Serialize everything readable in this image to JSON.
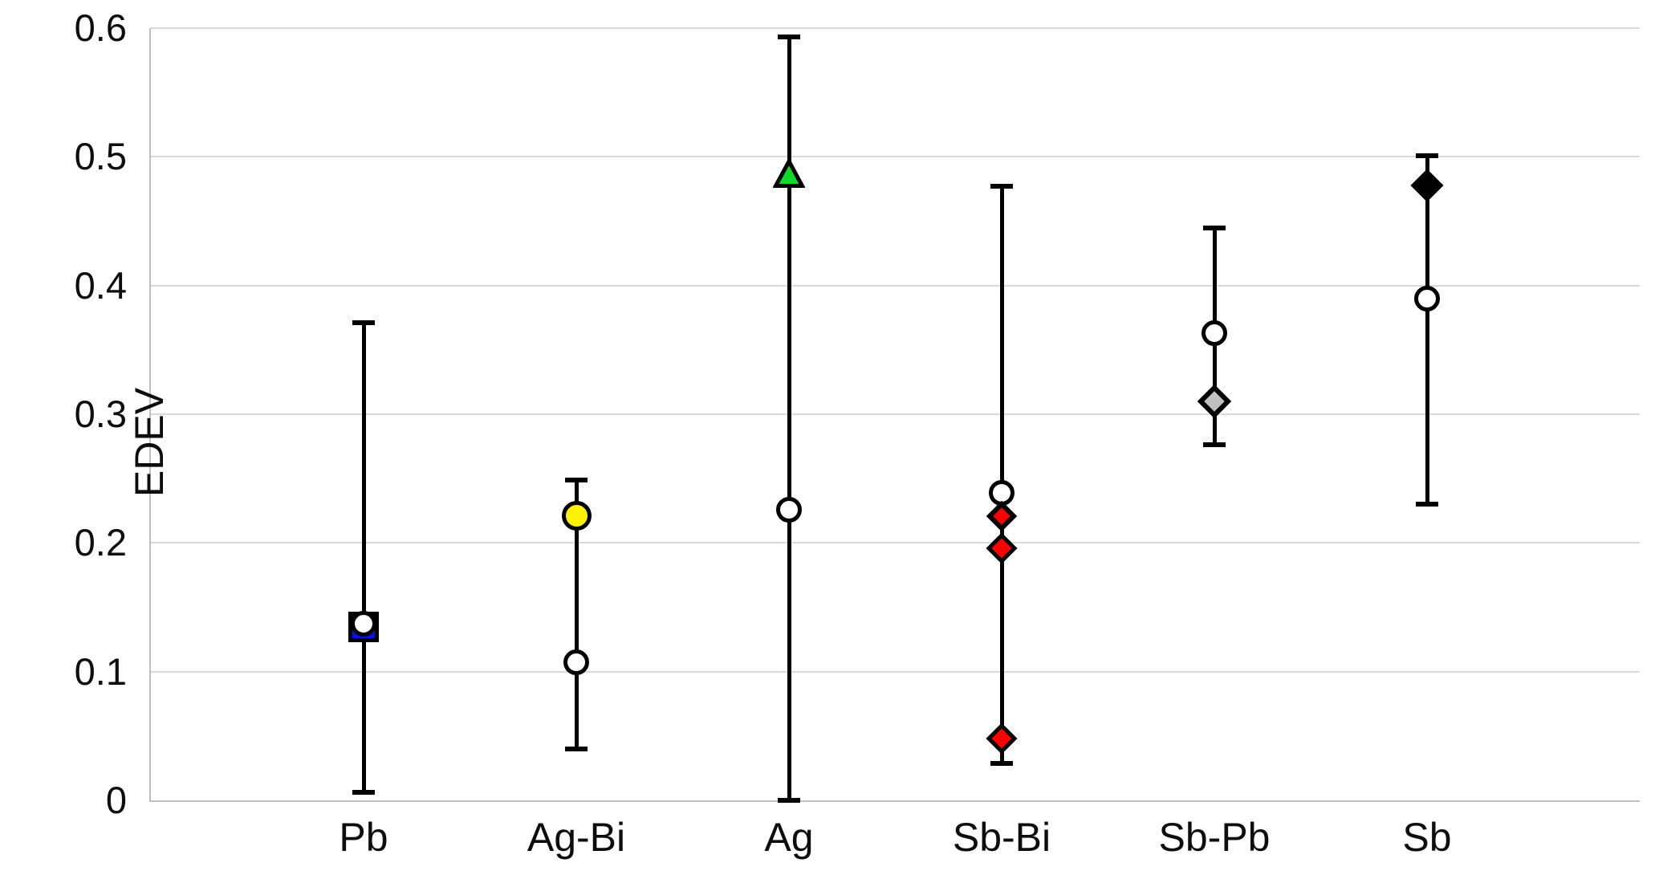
{
  "chart_data": {
    "type": "scatter",
    "subtype": "point-with-error-bars",
    "title": "",
    "xlabel": "",
    "ylabel": "EDEV",
    "ylim": [
      0,
      0.6
    ],
    "yticks": [
      0,
      0.1,
      0.2,
      0.3,
      0.4,
      0.5,
      0.6
    ],
    "ytick_labels": [
      "0",
      "0.1",
      "0.2",
      "0.3",
      "0.4",
      "0.5",
      "0.6"
    ],
    "grid": "horizontal",
    "legend": "none",
    "categories": [
      "Pb",
      "Ag-Bi",
      "Ag",
      "Sb-Bi",
      "Sb-Pb",
      "Sb"
    ],
    "colors": {
      "gridline": "#d9d9d9",
      "axis": "#bfbfbf",
      "error_bar": "#000000",
      "blue_square": "#0712ee",
      "yellow_circle": "#fff200",
      "green_triangle": "#0fdb28",
      "red_diamond": "#fe0000",
      "gray_diamond": "#c0c0c0",
      "black_diamond": "#000000",
      "white_marker": "#ffffff",
      "marker_outline": "#000000"
    },
    "groups": [
      {
        "category": "Pb",
        "whisker_low": 0.006,
        "whisker_high": 0.371,
        "markers": [
          {
            "shape": "square",
            "name": "blue-square",
            "fill": "#0712ee",
            "value": 0.135,
            "size": 38,
            "stroke": 5
          },
          {
            "shape": "circle",
            "name": "white-circle",
            "fill": "#ffffff",
            "value": 0.137,
            "size": 32,
            "stroke": 5
          }
        ]
      },
      {
        "category": "Ag-Bi",
        "whisker_low": 0.04,
        "whisker_high": 0.249,
        "markers": [
          {
            "shape": "circle",
            "name": "white-circle",
            "fill": "#ffffff",
            "value": 0.107,
            "size": 32,
            "stroke": 5
          },
          {
            "shape": "circle",
            "name": "yellow-circle",
            "fill": "#fff200",
            "value": 0.221,
            "size": 37,
            "stroke": 5
          }
        ]
      },
      {
        "category": "Ag",
        "whisker_low": 0.0,
        "whisker_high": 0.593,
        "markers": [
          {
            "shape": "circle",
            "name": "white-circle",
            "fill": "#ffffff",
            "value": 0.226,
            "size": 32,
            "stroke": 5
          },
          {
            "shape": "triangle",
            "name": "green-triangle",
            "fill": "#0fdb28",
            "value": 0.487,
            "size": 40,
            "stroke": 5
          }
        ]
      },
      {
        "category": "Sb-Bi",
        "whisker_low": 0.029,
        "whisker_high": 0.477,
        "markers": [
          {
            "shape": "circle",
            "name": "white-circle",
            "fill": "#ffffff",
            "value": 0.239,
            "size": 32,
            "stroke": 5
          },
          {
            "shape": "diamond",
            "name": "red-diamond",
            "fill": "#fe0000",
            "value": 0.221,
            "size": 42,
            "stroke": 6
          },
          {
            "shape": "diamond",
            "name": "red-diamond",
            "fill": "#fe0000",
            "value": 0.196,
            "size": 42,
            "stroke": 5
          },
          {
            "shape": "diamond",
            "name": "red-diamond",
            "fill": "#fe0000",
            "value": 0.048,
            "size": 42,
            "stroke": 5
          }
        ]
      },
      {
        "category": "Sb-Pb",
        "whisker_low": 0.276,
        "whisker_high": 0.445,
        "markers": [
          {
            "shape": "circle",
            "name": "white-circle",
            "fill": "#ffffff",
            "value": 0.363,
            "size": 32,
            "stroke": 5
          },
          {
            "shape": "diamond",
            "name": "gray-diamond",
            "fill": "#c0c0c0",
            "value": 0.31,
            "size": 46,
            "stroke": 6
          }
        ]
      },
      {
        "category": "Sb",
        "whisker_low": 0.23,
        "whisker_high": 0.501,
        "markers": [
          {
            "shape": "circle",
            "name": "white-circle",
            "fill": "#ffffff",
            "value": 0.39,
            "size": 32,
            "stroke": 5
          },
          {
            "shape": "diamond",
            "name": "black-diamond",
            "fill": "#000000",
            "value": 0.478,
            "size": 44,
            "stroke": 5
          }
        ]
      }
    ]
  }
}
